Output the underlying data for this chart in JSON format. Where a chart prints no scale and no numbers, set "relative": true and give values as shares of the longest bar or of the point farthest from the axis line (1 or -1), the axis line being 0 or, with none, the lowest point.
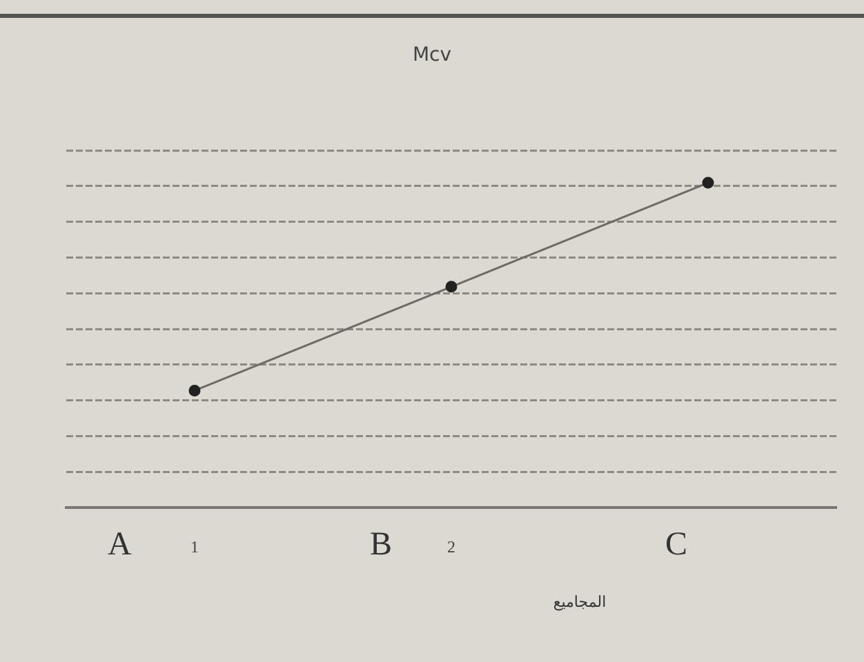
{
  "chart_data": {
    "type": "line",
    "title": "Mcv",
    "xlabel": "المجاميع",
    "categories": [
      "1",
      "2",
      null
    ],
    "values": [
      0.36,
      0.68,
      1
    ],
    "color": "#6e6a66",
    "relative": true,
    "marker": "circle",
    "grid": "y",
    "legend": false,
    "annotations": [
      "A",
      "B",
      "C"
    ]
  }
}
